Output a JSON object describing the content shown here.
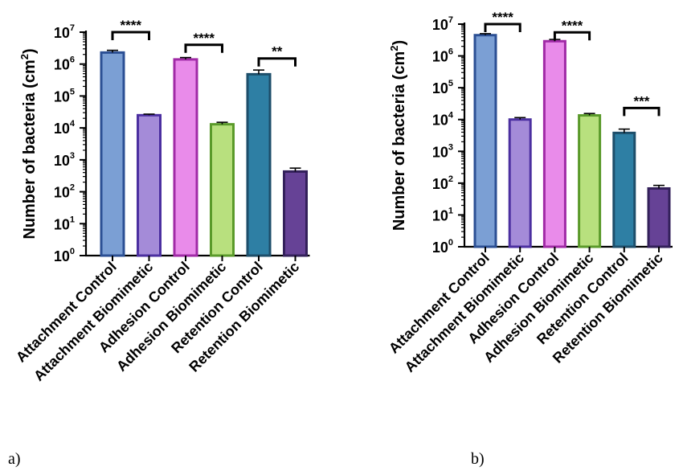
{
  "chart_data": [
    {
      "type": "bar",
      "panel_label": "a)",
      "ylabel": "Number of bacteria (cm",
      "ylabel_sup": "2",
      "ylabel_close": ")",
      "yscale": "log",
      "ylim": [
        1,
        10000000
      ],
      "ytick_base": "10",
      "ytick_exponents": [
        "0",
        "1",
        "2",
        "3",
        "4",
        "5",
        "6",
        "7"
      ],
      "categories": [
        "Attachment Control",
        "Attachment Biomimetic",
        "Adhesion Control",
        "Adhesion Biomimetic",
        "Retention Control",
        "Retention Biomimetic"
      ],
      "values": [
        2300000,
        25000,
        1400000,
        13000,
        480000,
        430
      ],
      "error_upper": [
        2700000,
        27000,
        1600000,
        15000,
        650000,
        550
      ],
      "colors": [
        {
          "fill": "#7b9fd4",
          "edge": "#2b4f94"
        },
        {
          "fill": "#a48bd8",
          "edge": "#4b2fa0"
        },
        {
          "fill": "#e98bea",
          "edge": "#a02aa6"
        },
        {
          "fill": "#b8e07e",
          "edge": "#5a9a2a"
        },
        {
          "fill": "#2e7fa4",
          "edge": "#1d4e6a"
        },
        {
          "fill": "#664296",
          "edge": "#33205a"
        }
      ],
      "comparisons": [
        {
          "from": 0,
          "to": 1,
          "label": "****",
          "level": 10000000
        },
        {
          "from": 2,
          "to": 3,
          "label": "****",
          "level": 4000000
        },
        {
          "from": 4,
          "to": 5,
          "label": "**",
          "level": 1500000
        }
      ]
    },
    {
      "type": "bar",
      "panel_label": "b)",
      "ylabel": "Number of bacteria (cm",
      "ylabel_sup": "2",
      "ylabel_close": ")",
      "yscale": "log",
      "ylim": [
        1,
        10000000
      ],
      "ytick_base": "10",
      "ytick_exponents": [
        "0",
        "1",
        "2",
        "3",
        "4",
        "5",
        "6",
        "7"
      ],
      "categories": [
        "Attachment Control",
        "Attachment Biomimetic",
        "Adhesion Control",
        "Adhesion Biomimetic",
        "Retention Control",
        "Retention Biomimetic"
      ],
      "values": [
        4500000,
        10000,
        2900000,
        13500,
        3800,
        68
      ],
      "error_upper": [
        5000000,
        11500,
        3300000,
        15500,
        5000,
        85
      ],
      "colors": [
        {
          "fill": "#7b9fd4",
          "edge": "#2b4f94"
        },
        {
          "fill": "#a48bd8",
          "edge": "#4b2fa0"
        },
        {
          "fill": "#e98bea",
          "edge": "#a02aa6"
        },
        {
          "fill": "#b8e07e",
          "edge": "#5a9a2a"
        },
        {
          "fill": "#2e7fa4",
          "edge": "#1d4e6a"
        },
        {
          "fill": "#664296",
          "edge": "#33205a"
        }
      ],
      "comparisons": [
        {
          "from": 0,
          "to": 1,
          "label": "****",
          "level": 10000000
        },
        {
          "from": 2,
          "to": 3,
          "label": "****",
          "level": 5500000
        },
        {
          "from": 4,
          "to": 5,
          "label": "***",
          "level": 23000
        }
      ]
    }
  ]
}
